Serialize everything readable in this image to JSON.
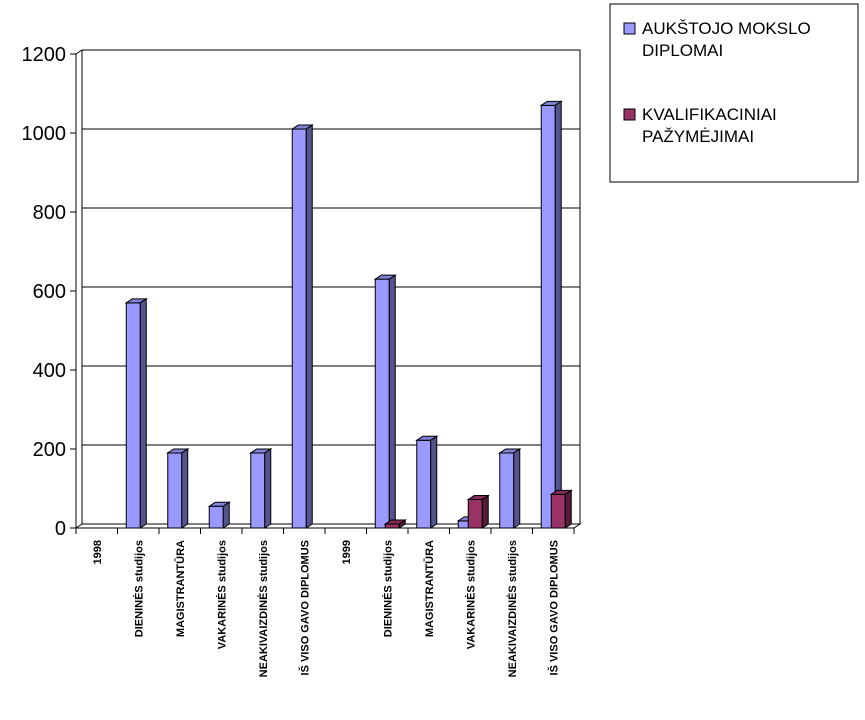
{
  "chart_data": {
    "type": "bar",
    "categories": [
      "1998",
      "DIENINĖS studijos",
      "MAGISTRANTŪRA",
      "VAKARINĖS studijos",
      "NEAKIVAIZDINĖS studijos",
      "IŠ VISO GAVO DIPLOMUS",
      "1999",
      "DIENINĖS studijos",
      "MAGISTRANTŪRA",
      "VAKARINĖS studijos",
      "NEAKIVAIZDINĖS studijos",
      "IŠ VISO GAVO DIPLOMUS"
    ],
    "series": [
      {
        "name": "AUKŠTOJO MOKSLO DIPLOMAI",
        "legend_lines": [
          "AUKŠTOJO MOKSLO",
          "DIPLOMAI"
        ],
        "color": "#9999FF",
        "values": [
          0,
          570,
          190,
          55,
          190,
          1010,
          0,
          630,
          222,
          18,
          190,
          1070
        ]
      },
      {
        "name": "KVALIFIKACINIAI PAŽYMĖJIMAI",
        "legend_lines": [
          "KVALIFIKACINIAI",
          "PAŽYMĖJIMAI"
        ],
        "color": "#993366",
        "values": [
          0,
          0,
          0,
          0,
          0,
          0,
          0,
          10,
          0,
          72,
          0,
          85
        ]
      }
    ],
    "yticks": [
      0,
      200,
      400,
      600,
      800,
      1000,
      1200
    ],
    "ylim": [
      0,
      1200
    ],
    "grid": true,
    "legend_position": "top-right",
    "title": "",
    "xlabel": "",
    "ylabel": ""
  }
}
